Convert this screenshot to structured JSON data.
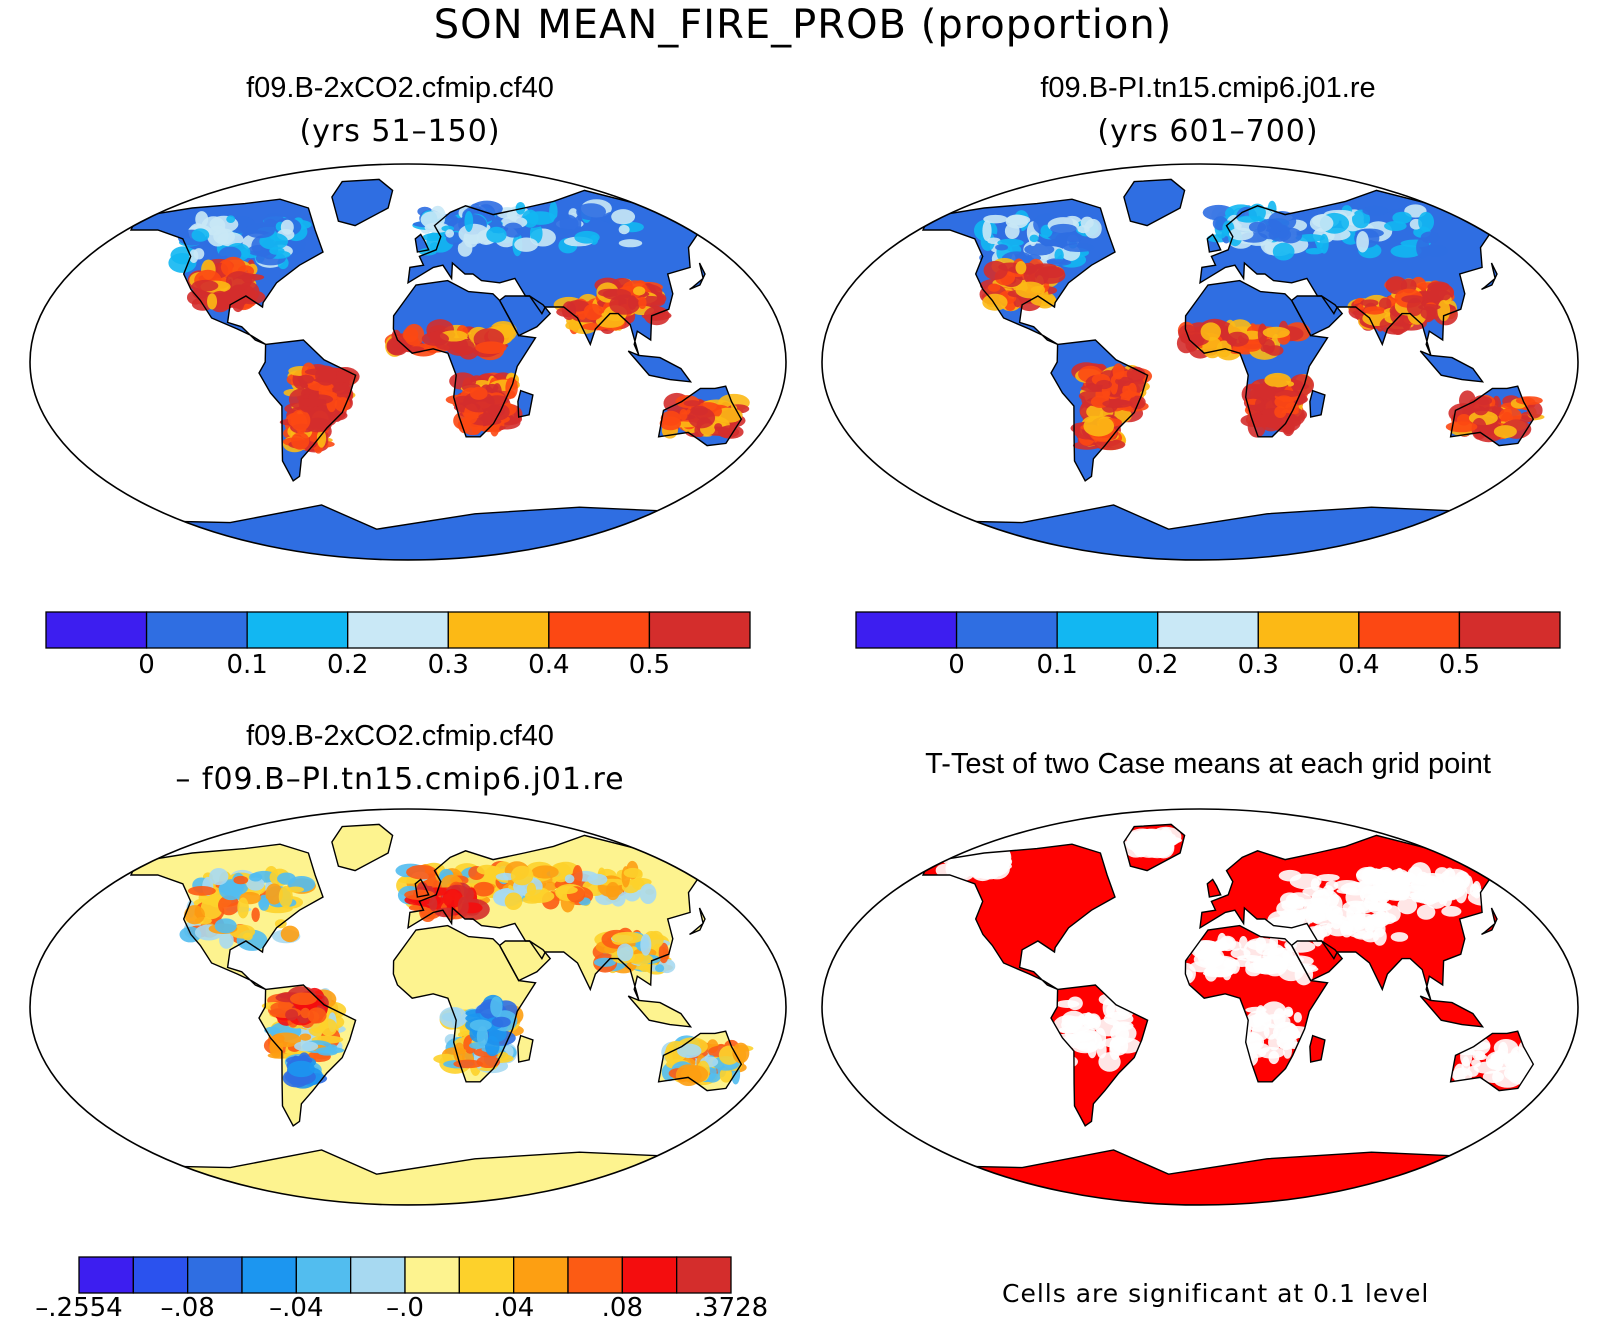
{
  "figure": {
    "title": "SON MEAN_FIRE_PROB (proportion)"
  },
  "panels": [
    {
      "id": "case1",
      "title": "f09.B-2xCO2.cfmip.cf40",
      "subtitle": "(yrs 51–150)"
    },
    {
      "id": "case2",
      "title": "f09.B-PI.tn15.cmip6.j01.re",
      "subtitle": "(yrs 601–700)"
    },
    {
      "id": "diff",
      "title": "f09.B-2xCO2.cfmip.cf40",
      "subtitle": "– f09.B–PI.tn15.cmip6.j01.re"
    },
    {
      "id": "ttest",
      "title": "T-Test of two Case means at each grid point",
      "subtitle": ""
    }
  ],
  "colorbars": {
    "mean": {
      "colors": [
        "#3d1ef0",
        "#2f6ee2",
        "#12b7f2",
        "#c9e8f6",
        "#fcb915",
        "#fc4813",
        "#d42d2c"
      ],
      "tick_labels": [
        "0",
        "0.1",
        "0.2",
        "0.3",
        "0.4",
        "0.5"
      ]
    },
    "diff": {
      "colors": [
        "#3d1ef0",
        "#2b52ee",
        "#2f6ee2",
        "#1c96f0",
        "#52bdef",
        "#a7d9f1",
        "#fdf38f",
        "#fdd12b",
        "#fd9f12",
        "#fc5b14",
        "#f40d0e",
        "#d42d2c"
      ],
      "tick_labels": [
        "–.2554",
        "–.08",
        "–.04",
        "–.0",
        ".04",
        ".08",
        ".3728"
      ]
    }
  },
  "map_colors": {
    "ocean": "#ffffff",
    "coast": "#000000",
    "significant": "#ff0000"
  },
  "ttest_note": "Cells are significant at 0.1 level"
}
